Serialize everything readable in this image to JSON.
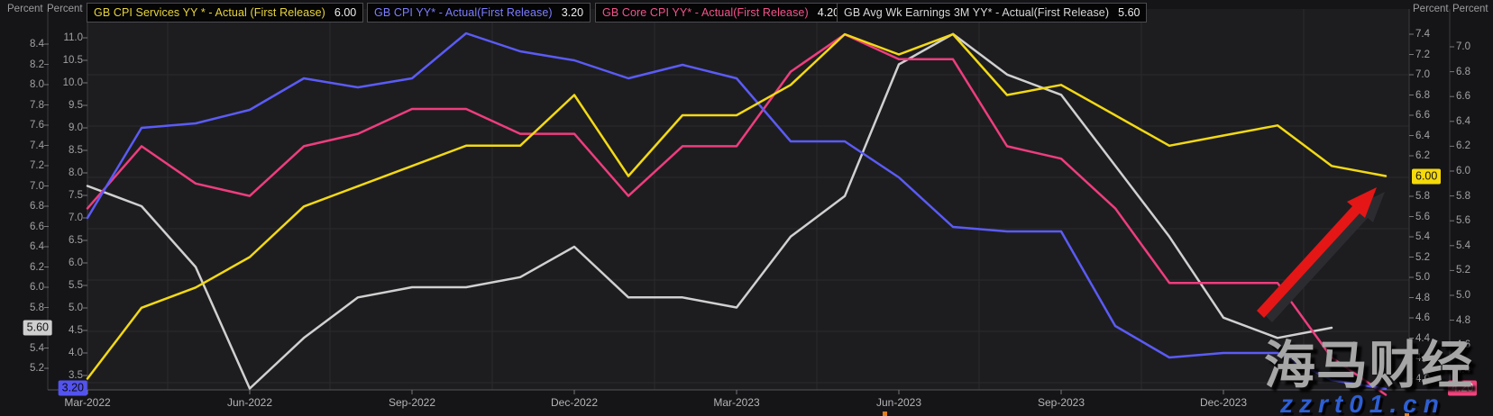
{
  "legend": {
    "items": [
      {
        "label": "GB CPI Services YY * - Actual (First Release)",
        "value": "6.00",
        "color": "#e8d43c"
      },
      {
        "label": "GB CPI YY* - Actual(First Release)",
        "value": "3.20",
        "color": "#7d7dff"
      },
      {
        "label": "GB Core CPI YY* - Actual(First Release)",
        "value": "4.20",
        "color": "#f4538b"
      },
      {
        "label": "GB Avg Wk Earnings 3M YY* - Actual(First Release)",
        "value": "5.60",
        "color": "#d8d8d8"
      }
    ]
  },
  "axes": {
    "left_outer": {
      "unit": "Percent",
      "ticks": [
        "8.4",
        "8.2",
        "8.0",
        "7.8",
        "7.6",
        "7.4",
        "7.2",
        "7.0",
        "6.8",
        "6.6",
        "6.4",
        "6.2",
        "6.0",
        "5.8",
        "5.4",
        "5.2"
      ]
    },
    "left_inner": {
      "unit": "Percent",
      "ticks": [
        "11.0",
        "10.5",
        "10.0",
        "9.5",
        "9.0",
        "8.5",
        "8.0",
        "7.5",
        "7.0",
        "6.5",
        "6.0",
        "5.5",
        "5.0",
        "4.5",
        "4.0",
        "3.5"
      ]
    },
    "right_inner": {
      "unit": "Percent",
      "ticks": [
        "7.4",
        "7.2",
        "7.0",
        "6.8",
        "6.6",
        "6.4",
        "6.2",
        "5.8",
        "5.6",
        "5.4",
        "5.2",
        "5.0",
        "4.8",
        "4.6",
        "4.4",
        "4.2",
        "4.0"
      ]
    },
    "right_outer": {
      "unit": "Percent",
      "ticks": [
        "7.0",
        "6.8",
        "6.6",
        "6.4",
        "6.2",
        "6.0",
        "5.8",
        "5.6",
        "5.4",
        "5.2",
        "5.0",
        "4.8",
        "4.6",
        "4.4"
      ]
    }
  },
  "x_axis": {
    "ticks": [
      "Mar-2022",
      "Jun-2022",
      "Sep-2022",
      "Dec-2022",
      "Mar-2023",
      "Jun-2023",
      "Sep-2023",
      "Dec-2023"
    ]
  },
  "badges": [
    {
      "text": "5.60",
      "axis": "left_outer",
      "bg": "#cfcfcf",
      "fg": "#141414"
    },
    {
      "text": "3.20",
      "axis": "left_inner",
      "bg": "#5353f0",
      "fg": "#0a0a14"
    },
    {
      "text": "6.00",
      "axis": "right_inner",
      "bg": "#f5d90a",
      "fg": "#141414"
    },
    {
      "text": "4.20",
      "axis": "right_outer",
      "bg": "#f0437c",
      "fg": "#ffffff"
    }
  ],
  "watermark": {
    "text": "海马财经",
    "url": "zzrt01.cn"
  },
  "annotation": {
    "type": "up-arrow",
    "color": "#e51616",
    "shadow_color": "#2c2c30"
  },
  "chart_data": {
    "type": "line",
    "x": [
      "Mar-2022",
      "Apr-2022",
      "May-2022",
      "Jun-2022",
      "Jul-2022",
      "Aug-2022",
      "Sep-2022",
      "Oct-2022",
      "Nov-2022",
      "Dec-2022",
      "Jan-2023",
      "Feb-2023",
      "Mar-2023",
      "Apr-2023",
      "May-2023",
      "Jun-2023",
      "Jul-2023",
      "Aug-2023",
      "Sep-2023",
      "Oct-2023",
      "Nov-2023",
      "Dec-2023",
      "Jan-2024",
      "Feb-2024",
      "Mar-2024"
    ],
    "series": [
      {
        "name": "GB Avg Wk Earnings 3M YY* - Actual(First Release)",
        "color": "#d0d0d0",
        "axis": "left_outer",
        "last_value": 5.6,
        "values": [
          7.0,
          6.8,
          6.2,
          5.0,
          5.5,
          5.9,
          6.0,
          6.0,
          6.1,
          6.4,
          5.9,
          5.9,
          5.8,
          6.5,
          6.9,
          8.2,
          8.5,
          8.1,
          7.9,
          7.2,
          6.5,
          5.7,
          5.5,
          5.6
        ]
      },
      {
        "name": "GB Core CPI YY* - Actual(First Release)",
        "color": "#ee3d7d",
        "axis": "right_outer",
        "last_value": 4.2,
        "values": [
          5.7,
          6.2,
          5.9,
          5.8,
          6.2,
          6.3,
          6.5,
          6.5,
          6.3,
          6.3,
          5.8,
          6.2,
          6.2,
          6.8,
          7.1,
          6.9,
          6.9,
          6.2,
          6.1,
          5.7,
          5.1,
          5.1,
          5.1,
          4.5,
          4.2
        ]
      },
      {
        "name": "GB CPI YY* - Actual(First Release)",
        "color": "#5b5bf7",
        "axis": "left_inner",
        "last_value": 3.2,
        "values": [
          7.0,
          9.0,
          9.1,
          9.4,
          10.1,
          9.9,
          10.1,
          11.1,
          10.7,
          10.5,
          10.1,
          10.4,
          10.1,
          8.7,
          8.7,
          7.9,
          6.8,
          6.7,
          6.7,
          4.6,
          3.9,
          4.0,
          4.0,
          3.4,
          3.2
        ]
      },
      {
        "name": "GB CPI Services YY * - Actual (First Release)",
        "color": "#f3d915",
        "axis": "right_inner",
        "last_value": 6.0,
        "values": [
          4.0,
          4.7,
          4.9,
          5.2,
          5.7,
          5.9,
          6.1,
          6.3,
          6.3,
          6.8,
          6.0,
          6.6,
          6.6,
          6.9,
          7.4,
          7.2,
          7.4,
          6.8,
          6.9,
          6.6,
          6.3,
          6.4,
          6.5,
          6.1,
          6.0
        ]
      }
    ],
    "axis_ranges": {
      "left_outer": {
        "min": 5.0,
        "max": 8.75
      },
      "left_inner": {
        "min": 3.2,
        "max": 11.6
      },
      "right_inner": {
        "min": 3.9,
        "max": 7.65
      },
      "right_outer": {
        "min": 4.2,
        "max": 7.3
      }
    },
    "title": "",
    "xlabel": "",
    "ylabel": "Percent",
    "grid": true,
    "legend_position": "top"
  }
}
